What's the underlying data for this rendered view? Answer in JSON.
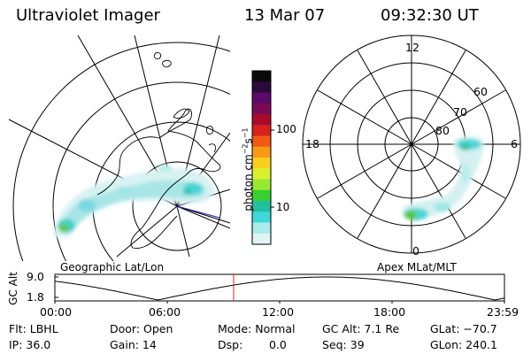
{
  "header": {
    "instrument": "Ultraviolet Imager",
    "date": "13 Mar 07",
    "time": "09:32:30 UT"
  },
  "colorbar": {
    "unit_label": "photon cm",
    "unit_exp1": "−2",
    "unit_mid": "s",
    "unit_exp2": "−1",
    "tick_labels": [
      "100",
      "10"
    ],
    "colors": [
      "#0a0a0a",
      "#2a0a3a",
      "#5a0a6a",
      "#7a0a55",
      "#aa0a2a",
      "#d8201e",
      "#f05a14",
      "#f89a14",
      "#f8d01e",
      "#d8f030",
      "#98e830",
      "#38d030",
      "#20c0a0",
      "#40d8d8",
      "#a8ecec",
      "#e0f4f4"
    ]
  },
  "panels": {
    "left_caption": "Geographic Lat/Lon",
    "right_caption": "Apex MLat/MLT"
  },
  "polar_labels": {
    "mlt_top": "12",
    "mlt_left": "18",
    "mlt_right": "6",
    "mlt_bottom": "0",
    "lat_60": "60",
    "lat_70": "70",
    "lat_80": "80"
  },
  "orbit_plot": {
    "ylabel": "GC Alt",
    "ytick_high": "9.0",
    "ytick_low": "1.8",
    "xticks": [
      "00:00",
      "06:00",
      "12:00",
      "18:00",
      "23:59"
    ],
    "current_time_marker": "09:32:30"
  },
  "info": {
    "filter": "Flt: LBHL",
    "ip": "IP: 36.0",
    "door": "Door: Open",
    "gain": "Gain: 14",
    "mode": "Mode: Normal",
    "dsp_label": "Dsp:",
    "dsp_value": "0.0",
    "gc_alt": "GC Alt: 7.1 Re",
    "seq": "Seq: 39",
    "glat": "GLat: −70.7",
    "glon": "GLon: 240.1"
  },
  "colors": {
    "orbit_marker": "#e02020",
    "footprint_line": "#2020c0"
  }
}
